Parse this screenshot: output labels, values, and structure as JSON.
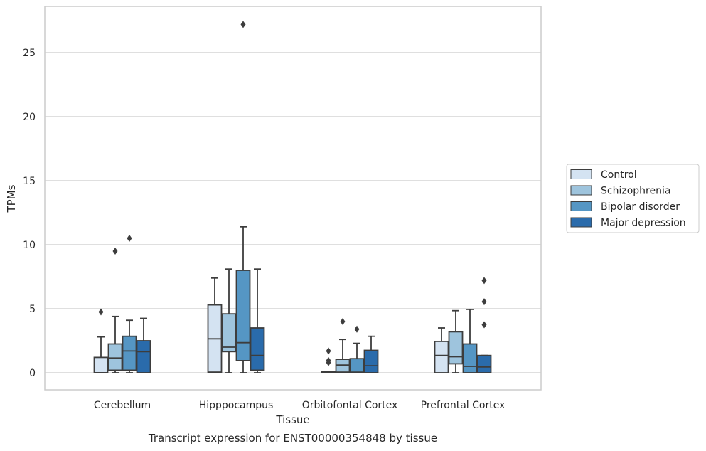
{
  "chart_data": {
    "type": "box",
    "title": "Transcript expression for ENST00000354848 by tissue",
    "xlabel": "Tissue",
    "ylabel": "TPMs",
    "ylim": [
      -1.3,
      28.5
    ],
    "yticks": [
      0,
      5,
      10,
      15,
      20,
      25
    ],
    "grid": "horizontal",
    "legend_position": "right",
    "categories": [
      "Cerebellum",
      "Hipppocampus",
      "Orbitofontal Cortex",
      "Prefrontal Cortex"
    ],
    "series": [
      {
        "name": "Control",
        "color": "#d4e3f2",
        "boxes": [
          {
            "min": 0,
            "q1": 0,
            "median": 0,
            "q3": 1.2,
            "max": 2.8,
            "outliers": [
              4.75
            ]
          },
          {
            "min": 0,
            "q1": 0.05,
            "median": 2.65,
            "q3": 5.3,
            "max": 7.4,
            "outliers": []
          },
          {
            "min": 0,
            "q1": 0,
            "median": 0.05,
            "q3": 0.1,
            "max": 0.1,
            "outliers": [
              1.7,
              0.95,
              0.8
            ]
          },
          {
            "min": 0,
            "q1": 0,
            "median": 1.35,
            "q3": 2.45,
            "max": 3.5,
            "outliers": []
          }
        ]
      },
      {
        "name": "Schizophrenia",
        "color": "#9ec4dd",
        "boxes": [
          {
            "min": 0,
            "q1": 0.2,
            "median": 1.15,
            "q3": 2.25,
            "max": 4.4,
            "outliers": [
              9.5
            ]
          },
          {
            "min": 0,
            "q1": 1.65,
            "median": 2.0,
            "q3": 4.6,
            "max": 8.1,
            "outliers": []
          },
          {
            "min": 0,
            "q1": 0.05,
            "median": 0.6,
            "q3": 1.05,
            "max": 2.6,
            "outliers": [
              4.0
            ]
          },
          {
            "min": 0,
            "q1": 0.7,
            "median": 1.25,
            "q3": 3.2,
            "max": 4.85,
            "outliers": []
          }
        ]
      },
      {
        "name": "Bipolar disorder",
        "color": "#5596c4",
        "boxes": [
          {
            "min": 0,
            "q1": 0.2,
            "median": 1.7,
            "q3": 2.85,
            "max": 4.1,
            "outliers": [
              10.5
            ]
          },
          {
            "min": 0,
            "q1": 0.95,
            "median": 2.35,
            "q3": 8.0,
            "max": 11.4,
            "outliers": [
              27.2
            ]
          },
          {
            "min": 0,
            "q1": 0,
            "median": 0.05,
            "q3": 1.1,
            "max": 2.3,
            "outliers": [
              3.4
            ]
          },
          {
            "min": 0,
            "q1": 0,
            "median": 0.5,
            "q3": 2.25,
            "max": 4.95,
            "outliers": []
          }
        ]
      },
      {
        "name": "Major depression",
        "color": "#2a6bab",
        "boxes": [
          {
            "min": 0,
            "q1": 0,
            "median": 1.65,
            "q3": 2.5,
            "max": 4.25,
            "outliers": []
          },
          {
            "min": 0,
            "q1": 0.2,
            "median": 1.35,
            "q3": 3.5,
            "max": 8.1,
            "outliers": []
          },
          {
            "min": 0,
            "q1": 0,
            "median": 0.55,
            "q3": 1.75,
            "max": 2.85,
            "outliers": []
          },
          {
            "min": 0,
            "q1": 0,
            "median": 0.45,
            "q3": 1.35,
            "max": 1.35,
            "outliers": [
              7.2,
              5.55,
              3.75
            ]
          }
        ]
      }
    ]
  }
}
